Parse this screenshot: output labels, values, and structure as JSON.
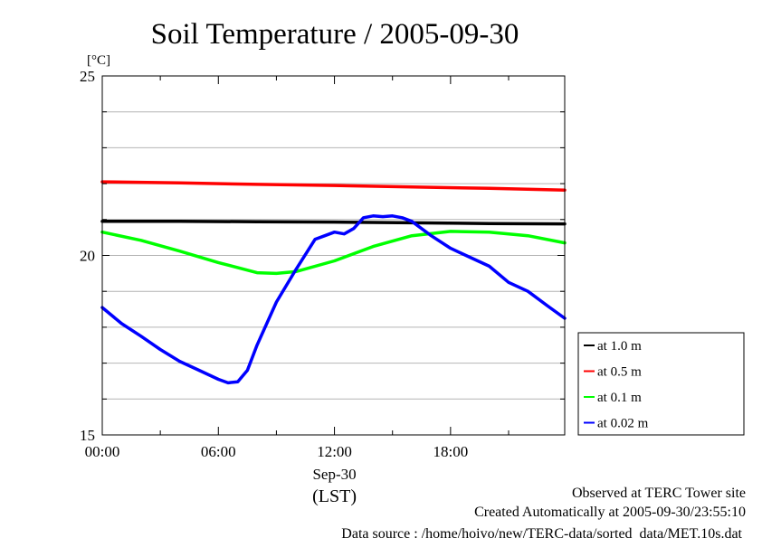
{
  "chart_data": {
    "type": "line",
    "title": "Soil Temperature / 2005-09-30",
    "ylabel": "[°C]",
    "ylim": [
      15,
      25
    ],
    "xlim": [
      0,
      23.9
    ],
    "yticks": [
      15,
      20,
      25
    ],
    "xticks": [
      {
        "value": 0,
        "label": "00:00"
      },
      {
        "value": 6,
        "label": "06:00"
      },
      {
        "value": 12,
        "label": "12:00"
      },
      {
        "value": 18,
        "label": "18:00"
      }
    ],
    "xaxis_date": "Sep-30",
    "xaxis_unit": "(LST)",
    "grid": true,
    "legend_position": "right",
    "series": [
      {
        "name": "at 1.0 m",
        "color": "#000000",
        "x": [
          0,
          4,
          8,
          12,
          16,
          20,
          23.9
        ],
        "y": [
          20.95,
          20.95,
          20.94,
          20.93,
          20.91,
          20.89,
          20.88
        ]
      },
      {
        "name": "at 0.5 m",
        "color": "#ff0000",
        "x": [
          0,
          4,
          8,
          12,
          16,
          20,
          23.9
        ],
        "y": [
          22.05,
          22.02,
          21.98,
          21.95,
          21.91,
          21.87,
          21.82
        ]
      },
      {
        "name": "at 0.1 m",
        "color": "#00ff00",
        "x": [
          0,
          2,
          4,
          6,
          8,
          9,
          10,
          12,
          14,
          16,
          18,
          20,
          22,
          23.9
        ],
        "y": [
          20.65,
          20.42,
          20.12,
          19.8,
          19.52,
          19.5,
          19.55,
          19.85,
          20.25,
          20.55,
          20.67,
          20.65,
          20.55,
          20.35
        ]
      },
      {
        "name": "at 0.02 m",
        "color": "#0000ff",
        "x": [
          0,
          1,
          2,
          3,
          4,
          5,
          6,
          6.5,
          7,
          7.5,
          8,
          9,
          10,
          11,
          11.5,
          12,
          12.5,
          13,
          13.5,
          14,
          14.5,
          15,
          15.5,
          16,
          17,
          18,
          19,
          20,
          21,
          22,
          23,
          23.9
        ],
        "y": [
          18.55,
          18.1,
          17.75,
          17.38,
          17.05,
          16.8,
          16.55,
          16.45,
          16.48,
          16.8,
          17.5,
          18.7,
          19.6,
          20.45,
          20.55,
          20.65,
          20.6,
          20.75,
          21.05,
          21.1,
          21.08,
          21.1,
          21.05,
          20.95,
          20.55,
          20.2,
          19.95,
          19.7,
          19.25,
          19.0,
          18.6,
          18.25
        ]
      }
    ]
  },
  "footer": {
    "line1": "Observed at TERC Tower site",
    "line2": "Created Automatically at 2005-09-30/23:55:10",
    "line3": "Data source : /home/hoivo/new/TERC-data/sorted_data/MET.10s.dat"
  }
}
